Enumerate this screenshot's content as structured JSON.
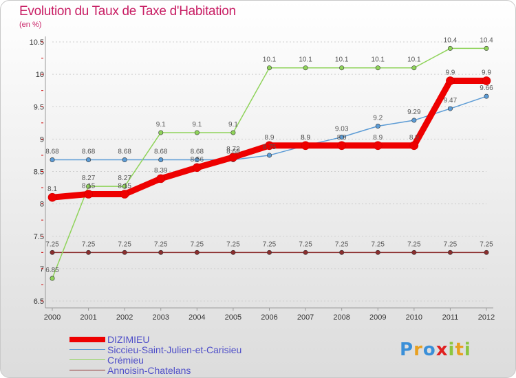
{
  "title": "Evolution du Taux de Taxe d'Habitation",
  "subtitle": "(en %)",
  "logo": {
    "p": "P",
    "r": "r",
    "o": "o",
    "x": "x",
    "i": "i",
    "t": "t",
    "i2": "i"
  },
  "chart_data": {
    "type": "line",
    "title": "Evolution du Taux de Taxe d'Habitation",
    "ylabel": "(en %)",
    "xlabel": "",
    "ylim": [
      6.5,
      10.5
    ],
    "yticks": [
      "6.5",
      "7",
      "7.5",
      "8",
      "8.5",
      "9",
      "9.5",
      "10",
      "10.5"
    ],
    "categories": [
      "2000",
      "2001",
      "2002",
      "2003",
      "2004",
      "2005",
      "2006",
      "2007",
      "2008",
      "2009",
      "2010",
      "2011",
      "2012"
    ],
    "series": [
      {
        "name": "Annoisin-Chatelans",
        "color": "#8b2e2e",
        "width": 1.5,
        "values": [
          7.25,
          7.25,
          7.25,
          7.25,
          7.25,
          7.25,
          7.25,
          7.25,
          7.25,
          7.25,
          7.25,
          7.25,
          7.25
        ],
        "labels": [
          "7.25",
          "7.25",
          "7.25",
          "7.25",
          "7.25",
          "7.25",
          "7.25",
          "7.25",
          "7.25",
          "7.25",
          "7.25",
          "7.25",
          "7.25"
        ]
      },
      {
        "name": "Siccieu-Saint-Julien-et-Carisieu",
        "color": "#5b9bd5",
        "width": 1.5,
        "values": [
          8.68,
          8.68,
          8.68,
          8.68,
          8.68,
          8.68,
          8.75,
          8.9,
          9.03,
          9.2,
          9.29,
          9.47,
          9.66
        ],
        "labels": [
          "8.68",
          "8.68",
          "8.68",
          "8.68",
          "8.68",
          "8.68",
          "8.75",
          "8.9",
          "9.03",
          "9.2",
          "9.29",
          "9.47",
          "9.66"
        ]
      },
      {
        "name": "Crémieu",
        "color": "#8fd35a",
        "width": 1.5,
        "values": [
          6.85,
          8.27,
          8.27,
          9.1,
          9.1,
          9.1,
          10.1,
          10.1,
          10.1,
          10.1,
          10.1,
          10.4,
          10.4
        ],
        "labels": [
          "6.85",
          "8.27",
          "8.27",
          "9.1",
          "9.1",
          "9.1",
          "10.1",
          "10.1",
          "10.1",
          "10.1",
          "10.1",
          "10.4",
          "10.4"
        ]
      },
      {
        "name": "DIZIMIEU",
        "color": "#ee0000",
        "width": 9,
        "values": [
          8.1,
          8.15,
          8.15,
          8.39,
          8.56,
          8.72,
          8.9,
          8.9,
          8.9,
          8.9,
          8.9,
          9.9,
          9.9
        ],
        "labels": [
          "8.1",
          "8.15",
          "8.15",
          "8.39",
          "8.56",
          "8.72",
          "8.9",
          "8.9",
          "8.9",
          "8.9",
          "8.9",
          "9.9",
          "9.9"
        ]
      }
    ],
    "legend_order": [
      "DIZIMIEU",
      "Siccieu-Saint-Julien-et-Carisieu",
      "Crémieu",
      "Annoisin-Chatelans"
    ],
    "legend_position": "bottom-left"
  }
}
